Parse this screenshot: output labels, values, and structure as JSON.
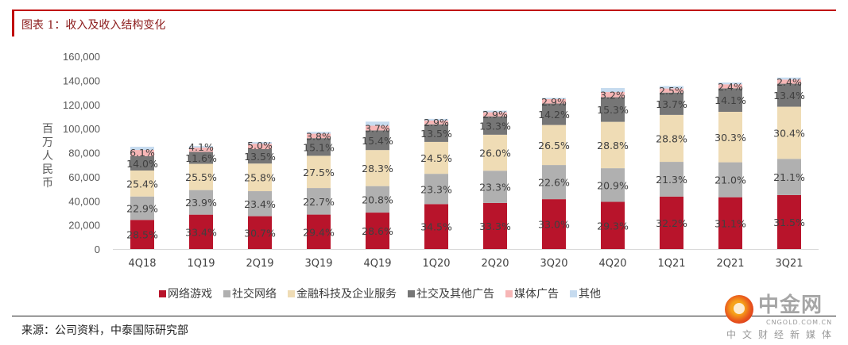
{
  "header": {
    "title": "图表 1：收入及收入结构变化"
  },
  "footer": {
    "source": "来源：公司资料，中泰国际研究部"
  },
  "watermark": {
    "brand": "中金网",
    "url": "CNGOLD.COM.CN",
    "tagline": "中文财经新媒体"
  },
  "chart_data": {
    "type": "bar",
    "stacked": true,
    "title": "收入及收入结构变化",
    "xlabel": "",
    "ylabel": "百万人民币",
    "ylim": [
      0,
      160000
    ],
    "yticks": [
      0,
      20000,
      40000,
      60000,
      80000,
      100000,
      120000,
      140000,
      160000
    ],
    "ytick_labels": [
      "0",
      "20,000",
      "40,000",
      "60,000",
      "80,000",
      "100,000",
      "120,000",
      "140,000",
      "160,000"
    ],
    "grid": false,
    "legend_position": "bottom",
    "categories": [
      "4Q18",
      "1Q19",
      "2Q19",
      "3Q19",
      "4Q19",
      "1Q20",
      "2Q20",
      "3Q20",
      "4Q20",
      "1Q21",
      "2Q21",
      "3Q21"
    ],
    "totals": [
      84896,
      85465,
      88821,
      97236,
      105767,
      108065,
      114883,
      125447,
      133669,
      135303,
      138259,
      142368
    ],
    "series": [
      {
        "name": "网络游戏",
        "color": "#b8142b",
        "share_pct": [
          28.5,
          33.4,
          30.7,
          29.4,
          28.6,
          34.5,
          33.3,
          33.0,
          29.3,
          32.2,
          31.1,
          31.5
        ]
      },
      {
        "name": "社交网络",
        "color": "#b0b0b0",
        "share_pct": [
          22.9,
          23.9,
          23.4,
          22.7,
          20.8,
          23.3,
          23.3,
          22.6,
          20.9,
          21.3,
          21.0,
          21.1
        ]
      },
      {
        "name": "金融科技及企业服务",
        "color": "#efdcb5",
        "share_pct": [
          25.4,
          25.5,
          25.8,
          27.5,
          28.3,
          24.5,
          26.0,
          26.5,
          28.8,
          28.8,
          30.3,
          30.4
        ]
      },
      {
        "name": "社交及其他广告",
        "color": "#767676",
        "share_pct": [
          14.0,
          11.6,
          13.5,
          15.1,
          15.4,
          13.5,
          13.3,
          14.2,
          15.3,
          13.7,
          14.1,
          13.4
        ]
      },
      {
        "name": "媒体广告",
        "color": "#f7b6b6",
        "share_pct": [
          6.1,
          4.1,
          5.0,
          3.8,
          3.7,
          2.9,
          2.9,
          2.9,
          3.2,
          2.5,
          2.4,
          2.4
        ]
      },
      {
        "name": "其他",
        "color": "#c6dbef",
        "share_pct": [
          3.1,
          1.5,
          1.6,
          1.5,
          3.2,
          1.3,
          1.2,
          0.8,
          2.5,
          1.5,
          1.1,
          1.2
        ]
      }
    ],
    "data_labels_series": [
      "网络游戏",
      "社交网络",
      "金融科技及企业服务",
      "社交及其他广告",
      "媒体广告"
    ]
  }
}
